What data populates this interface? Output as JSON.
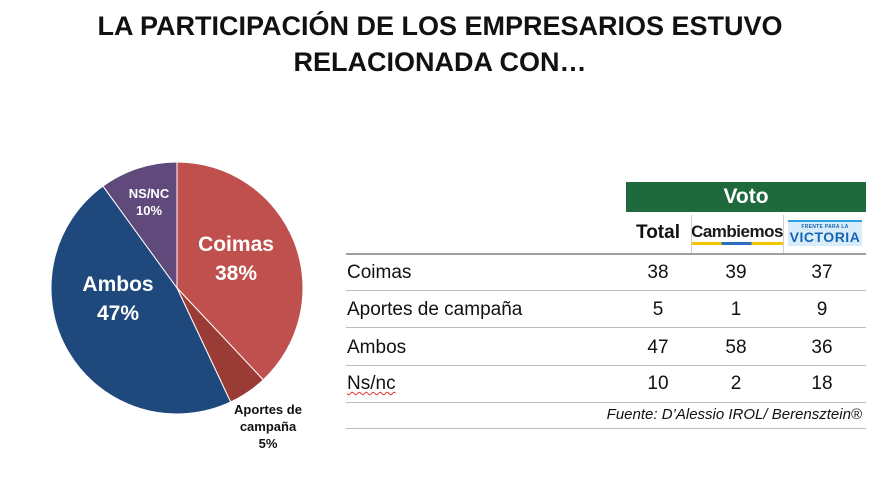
{
  "title_lines": [
    "LA PARTICIPACIÓN DE LOS EMPRESARIOS ESTUVO",
    "RELACIONADA CON…"
  ],
  "chart_data": {
    "type": "pie",
    "slices": [
      {
        "label": "Coimas",
        "value": 38,
        "display": "38%",
        "color": "#c0504d"
      },
      {
        "label": "Aportes de campaña",
        "value": 5,
        "display": "5%",
        "color": "#9b3b36"
      },
      {
        "label": "Ambos",
        "value": 47,
        "display": "47%",
        "color": "#1f497d"
      },
      {
        "label": "NS/NC",
        "value": 10,
        "display": "10%",
        "color": "#604a7b"
      }
    ],
    "start": "top",
    "direction": "clockwise"
  },
  "pie_labels": {
    "coimas_name": "Coimas",
    "coimas_pct": "38%",
    "ambos_name": "Ambos",
    "ambos_pct": "47%",
    "nsnc_name": "NS/NC",
    "nsnc_pct": "10%",
    "aportes_line1": "Aportes de",
    "aportes_line2": "campaña",
    "aportes_pct": "5%"
  },
  "table": {
    "group_header": "Voto",
    "group_color": "#1f6a3c",
    "columns": [
      "Total",
      "Cambiemos",
      "FRENTE PARA LA VICTORIA"
    ],
    "rows": [
      {
        "label": "Coimas",
        "values": [
          "38",
          "39",
          "37"
        ]
      },
      {
        "label": "Aportes de campaña",
        "values": [
          "5",
          "1",
          "9"
        ]
      },
      {
        "label": "Ambos",
        "values": [
          "47",
          "58",
          "36"
        ]
      },
      {
        "label": "Ns/nc",
        "values": [
          "10",
          "2",
          "18"
        ]
      }
    ],
    "source": "Fuente: D’Alessio IROL/ Berensztein®"
  },
  "logos": {
    "cambiemos": "Cambiemos",
    "victoria_small": "FRENTE PARA LA",
    "victoria_big": "VICTORIA"
  }
}
